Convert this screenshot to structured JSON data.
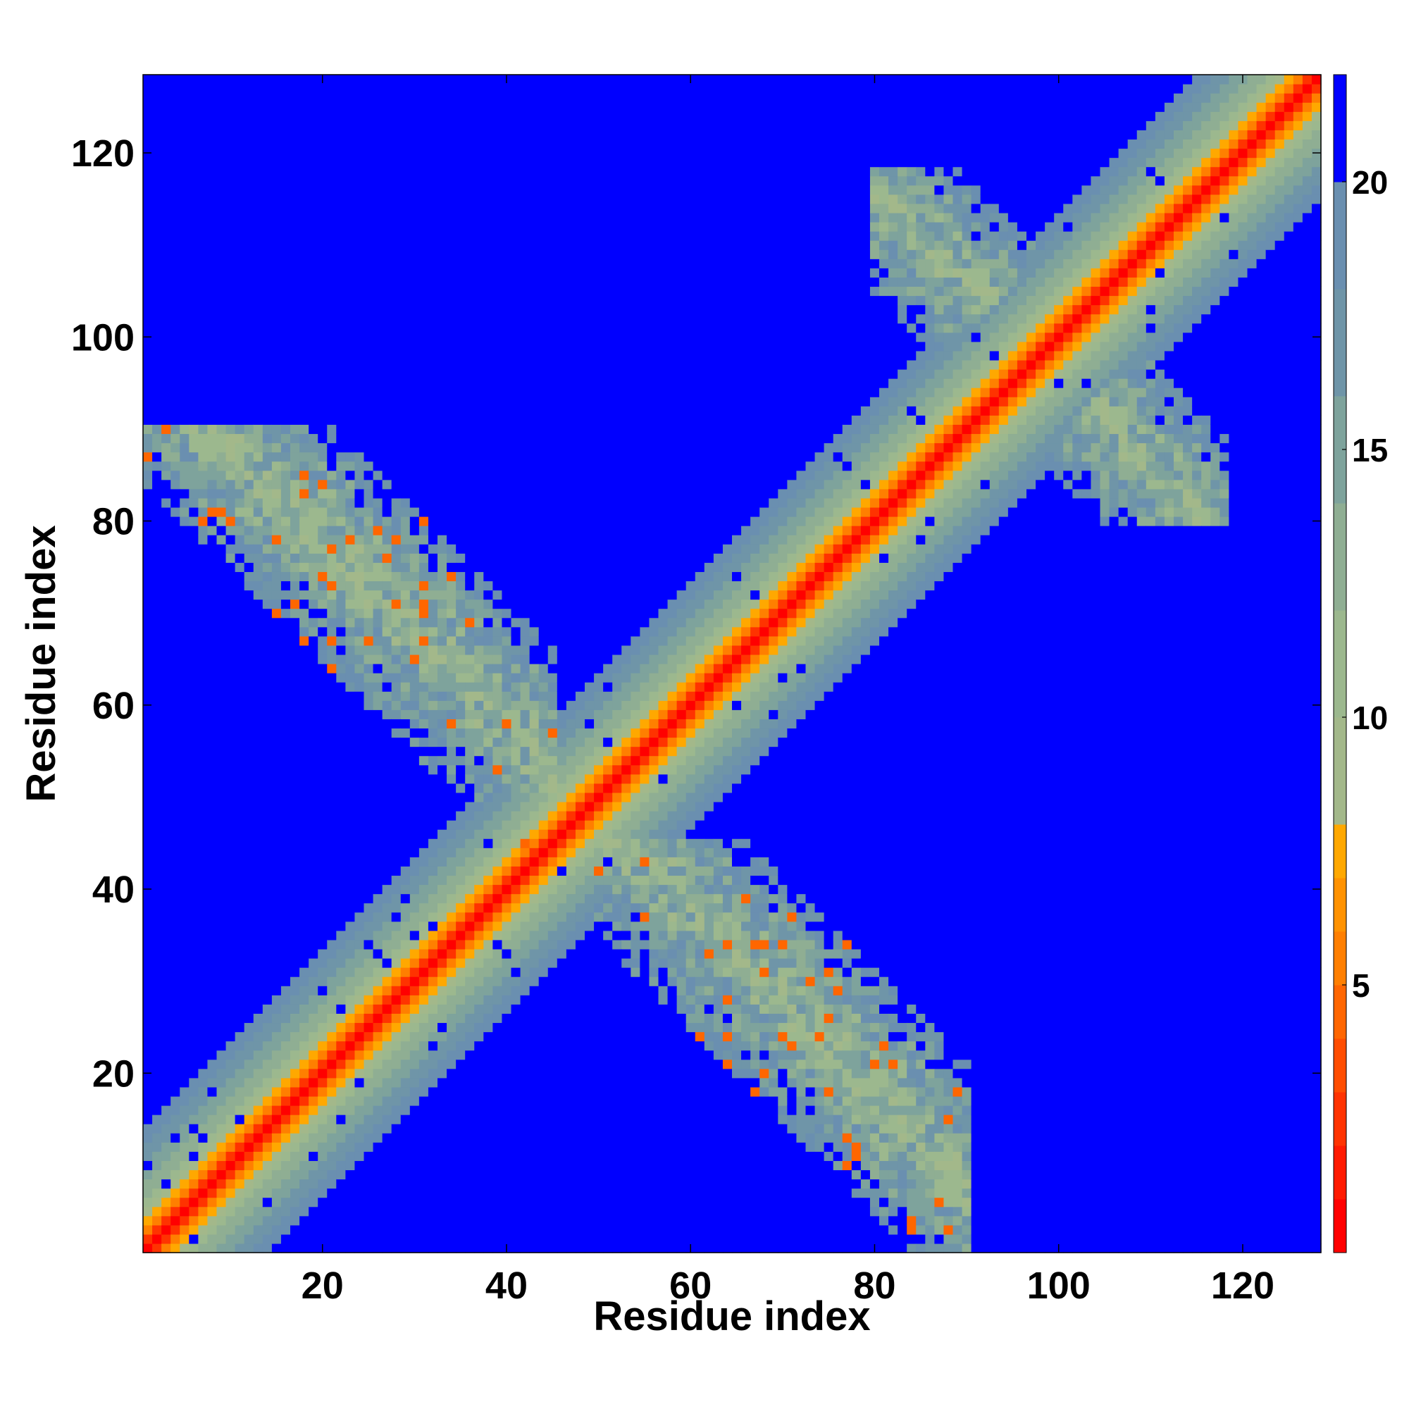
{
  "chart_data": {
    "type": "heatmap",
    "title": "",
    "xlabel": "Residue index",
    "ylabel": "Residue index",
    "n_residues": 128,
    "xlim": [
      1,
      128
    ],
    "ylim": [
      1,
      128
    ],
    "x_ticks": [
      20,
      40,
      60,
      80,
      100,
      120
    ],
    "y_ticks": [
      20,
      40,
      60,
      80,
      100,
      120
    ],
    "matrix_symmetric": true,
    "diagonal_band": {
      "description": "distance grows with sequence separation |i-j|",
      "value_at_separation": [
        [
          0,
          0
        ],
        [
          1,
          3
        ],
        [
          2,
          6
        ],
        [
          3,
          8
        ],
        [
          5,
          11
        ],
        [
          8,
          15
        ],
        [
          11,
          18
        ],
        [
          14,
          20
        ]
      ]
    },
    "contact_region": {
      "description": "antiparallel off-diagonal contacts between residues ~1-45 and ~40-90",
      "residue_i_range": [
        1,
        45
      ],
      "residue_j_range": [
        40,
        90
      ],
      "typical_value": 12
    },
    "colorbar": {
      "min": 0,
      "max": 22,
      "ticks": [
        5,
        10,
        15,
        20
      ],
      "levels": [
        {
          "upto": 1,
          "color": "#ff0000"
        },
        {
          "upto": 2,
          "color": "#ff1a00"
        },
        {
          "upto": 3,
          "color": "#ff3300"
        },
        {
          "upto": 4,
          "color": "#ff4d00"
        },
        {
          "upto": 5,
          "color": "#ff6600"
        },
        {
          "upto": 6,
          "color": "#ff7f00"
        },
        {
          "upto": 7,
          "color": "#ff9200"
        },
        {
          "upto": 8,
          "color": "#ffa800"
        },
        {
          "upto": 10,
          "color": "#a3b88a"
        },
        {
          "upto": 12,
          "color": "#9cb88e"
        },
        {
          "upto": 14,
          "color": "#8fae93"
        },
        {
          "upto": 16,
          "color": "#7ea39c"
        },
        {
          "upto": 18,
          "color": "#6f95a8"
        },
        {
          "upto": 20,
          "color": "#6a8fb0"
        },
        {
          "upto": 22,
          "color": "#0000ff"
        }
      ]
    }
  }
}
